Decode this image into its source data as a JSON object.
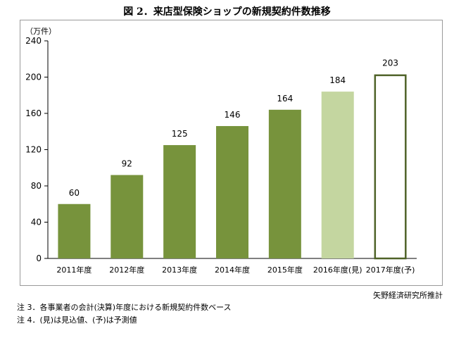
{
  "title": "図 2．来店型保険ショップの新規契約件数推移",
  "unit": "（万件）",
  "source": "矢野経済研究所推計",
  "notes": [
    "注 3．各事業者の会計(決算)年度における新規契約件数ベース",
    "注 4．(見)は見込値、(予)は予測値"
  ],
  "colors": {
    "actual": "#77933c",
    "estimate": "#c4d6a0",
    "forecast_fill": "#ffffff",
    "forecast_border": "#4f6228",
    "axis": "#000000",
    "frame": "#9a9a9a"
  },
  "chart_data": {
    "type": "bar",
    "categories": [
      "2011年度",
      "2012年度",
      "2013年度",
      "2014年度",
      "2015年度",
      "2016年度(見)",
      "2017年度(予)"
    ],
    "values": [
      60,
      92,
      125,
      146,
      164,
      184,
      203
    ],
    "bar_styles": [
      "actual",
      "actual",
      "actual",
      "actual",
      "actual",
      "estimate",
      "forecast"
    ],
    "ylim": [
      0,
      240
    ],
    "yticks": [
      0,
      40,
      80,
      120,
      160,
      200,
      240
    ],
    "grid": false,
    "legend": "none"
  }
}
